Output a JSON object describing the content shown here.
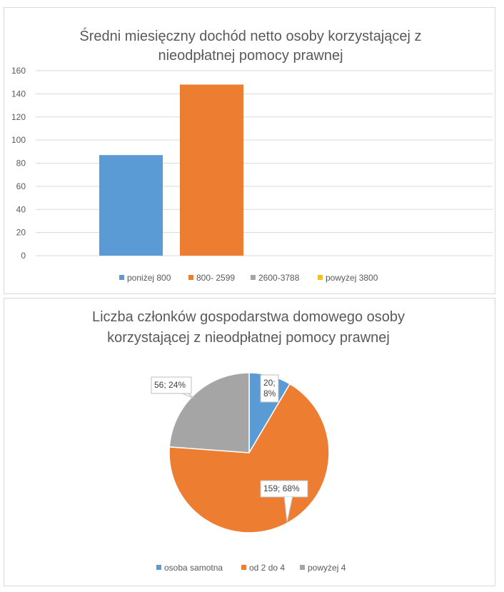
{
  "chart_data": [
    {
      "type": "bar",
      "title_lines": [
        "Średni miesięczny dochód netto osoby korzystającej  z",
        "nieodpłatnej pomocy prawnej"
      ],
      "categories": [
        "poniżej 800",
        "800- 2599",
        "2600-3788",
        "powyżej 3800"
      ],
      "values": [
        87,
        148,
        0,
        0
      ],
      "colors": [
        "#5b9bd5",
        "#ed7d31",
        "#a5a5a5",
        "#ffc000"
      ],
      "y_ticks": [
        "0",
        "20",
        "40",
        "60",
        "80",
        "100",
        "120",
        "140",
        "160"
      ],
      "ylim": [
        0,
        160
      ],
      "grid": true,
      "legend_position": "bottom"
    },
    {
      "type": "pie",
      "title_lines": [
        "Liczba członków gospodarstwa domowego osoby",
        "korzystającej z nieodpłatnej pomocy prawnej"
      ],
      "categories": [
        "osoba samotna",
        "od 2 do 4",
        "powyżej 4"
      ],
      "values": [
        20,
        159,
        56
      ],
      "percents": [
        "8%",
        "68%",
        "24%"
      ],
      "data_labels": [
        [
          "20;",
          "8%"
        ],
        [
          "159; 68%"
        ],
        [
          "56; 24%"
        ]
      ],
      "colors": [
        "#5b9bd5",
        "#ed7d31",
        "#a5a5a5"
      ],
      "legend_position": "bottom"
    }
  ]
}
